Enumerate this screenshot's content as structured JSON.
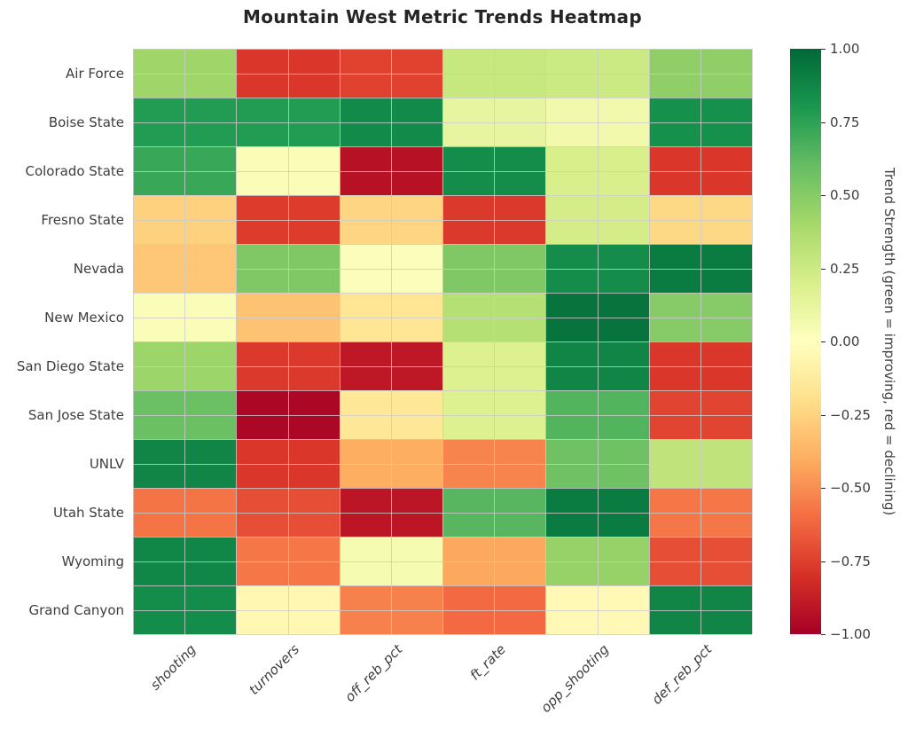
{
  "title": "Mountain West Metric Trends Heatmap",
  "colorbar": {
    "label": "Trend Strength (green = improving, red = declining)",
    "ticks": [
      "1.00",
      "0.75",
      "0.50",
      "0.25",
      "0.00",
      "−0.25",
      "−0.50",
      "−0.75",
      "−1.00"
    ]
  },
  "colors": {
    "background": "#ffffff",
    "title_text": "#252525",
    "tick_text": "#3d3d3d",
    "grid_line": "#cccccc"
  },
  "chart_data": {
    "type": "heatmap",
    "title": "Mountain West Metric Trends Heatmap",
    "rows": [
      "Air Force",
      "Boise State",
      "Colorado State",
      "Fresno State",
      "Nevada",
      "New Mexico",
      "San Diego State",
      "San Jose State",
      "UNLV",
      "Utah State",
      "Wyoming",
      "Grand Canyon"
    ],
    "columns": [
      "shooting",
      "turnovers",
      "off_reb_pct",
      "ft_rate",
      "opp_shooting",
      "def_reb_pct"
    ],
    "values": [
      [
        0.42,
        -0.78,
        -0.74,
        0.27,
        0.25,
        0.47
      ],
      [
        0.78,
        0.78,
        0.86,
        0.12,
        0.07,
        0.83
      ],
      [
        0.72,
        0.03,
        -0.93,
        0.85,
        0.2,
        -0.78
      ],
      [
        -0.26,
        -0.76,
        -0.24,
        -0.77,
        0.22,
        -0.23
      ],
      [
        -0.3,
        0.52,
        0.02,
        0.52,
        0.85,
        0.92
      ],
      [
        0.03,
        -0.32,
        -0.16,
        0.34,
        0.95,
        0.5
      ],
      [
        0.43,
        -0.77,
        -0.9,
        0.18,
        0.88,
        -0.78
      ],
      [
        0.58,
        -0.97,
        -0.15,
        0.18,
        0.65,
        -0.73
      ],
      [
        0.88,
        -0.78,
        -0.4,
        -0.53,
        0.57,
        0.3
      ],
      [
        -0.58,
        -0.7,
        -0.91,
        0.64,
        0.92,
        -0.57
      ],
      [
        0.87,
        -0.57,
        0.05,
        -0.42,
        0.45,
        -0.7
      ],
      [
        0.85,
        -0.05,
        -0.54,
        -0.61,
        -0.04,
        0.88
      ]
    ],
    "vmin": -1.0,
    "vmax": 1.0,
    "colormap": "RdYlGn",
    "colormap_stops": [
      "#a50026",
      "#d73027",
      "#f46d43",
      "#fdae61",
      "#fee08b",
      "#ffffbf",
      "#d9ef8b",
      "#a6d96a",
      "#66bd63",
      "#1a9850",
      "#006837"
    ],
    "colorbar_label": "Trend Strength (green = improving, red = declining)",
    "grid": true,
    "legend_position": "right"
  }
}
